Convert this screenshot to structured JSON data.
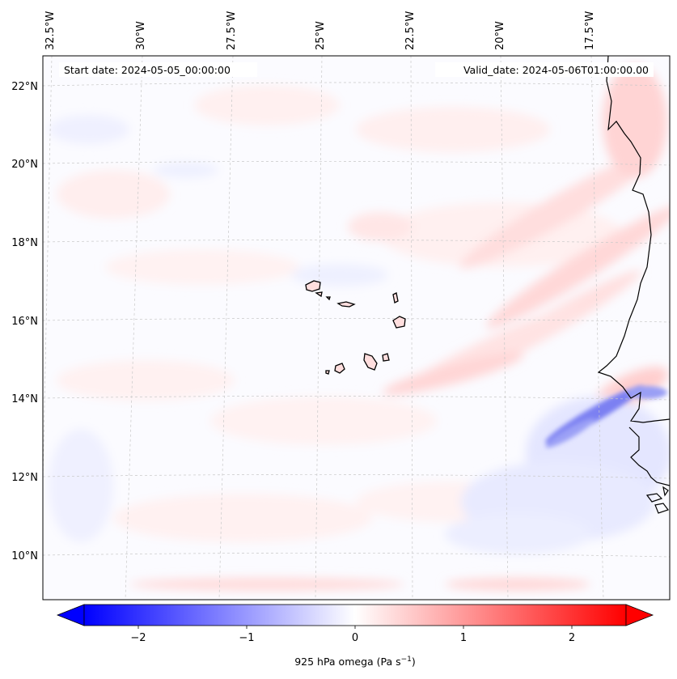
{
  "map": {
    "start_date": "Start date: 2024-05-05_00:00:00",
    "valid_date": "Valid_date: 2024-05-06T01:00:00.00",
    "longitude_labels": [
      "32.5°W",
      "30°W",
      "27.5°W",
      "25°W",
      "22.5°W",
      "20°W",
      "17.5°W"
    ],
    "latitude_labels": [
      "22°N",
      "20°N",
      "18°N",
      "16°N",
      "14°N",
      "12°N",
      "10°N"
    ],
    "variable": "925 hPa omega",
    "units": "Pa s−1",
    "colormap": "bwr",
    "colors": {
      "negative": "#0000ff",
      "zero": "#ffffff",
      "positive": "#ff0000",
      "coastline": "#000000",
      "gridline": "#bbbbbb"
    }
  },
  "colorbar": {
    "label_main": "925 hPa omega (Pa s",
    "label_sup": "−1",
    "label_close": ")",
    "ticks": [
      {
        "value": -2,
        "label": "−2"
      },
      {
        "value": -1,
        "label": "−1"
      },
      {
        "value": 0,
        "label": "0"
      },
      {
        "value": 1,
        "label": "1"
      },
      {
        "value": 2,
        "label": "2"
      }
    ],
    "range": [
      -2.5,
      2.5
    ],
    "extend": "both"
  }
}
